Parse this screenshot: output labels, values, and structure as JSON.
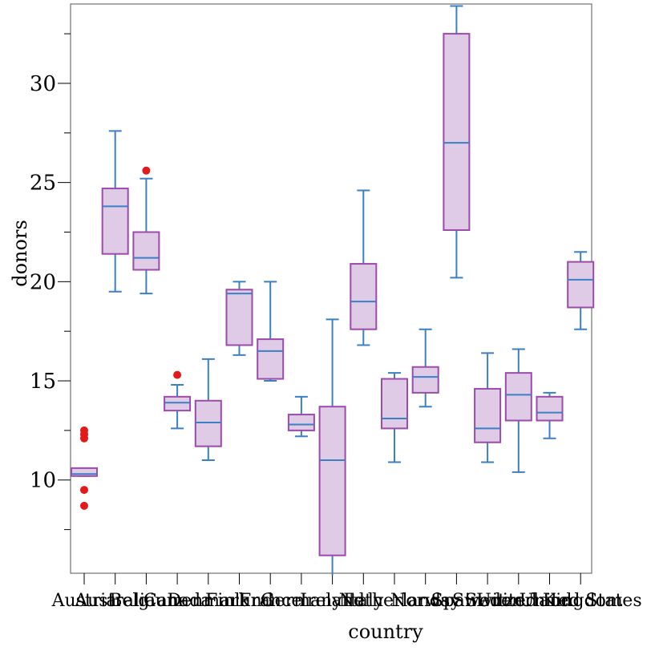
{
  "chart_data": {
    "type": "box",
    "xlabel": "country",
    "ylabel": "donors",
    "ylim": [
      5.3,
      34.0
    ],
    "yticks": [
      10,
      15,
      20,
      25,
      30
    ],
    "ytick_labels": [
      "10",
      "15",
      "20",
      "25",
      "30"
    ],
    "minor_step": 2.5,
    "colors": {
      "box_fill": "#dfcbe6",
      "box_stroke": "#9b4ba8",
      "median": "#3b7fc4",
      "whisker": "#3b7fc4",
      "outlier": "#e31a1c"
    },
    "categories": [
      {
        "label": "Austria",
        "q1": 10.2,
        "median": 10.3,
        "q3": 10.6,
        "lo": 10.2,
        "hi": 10.6,
        "outliers": [
          8.7,
          9.5,
          12.1,
          12.3,
          12.5
        ]
      },
      {
        "label": "Australia",
        "q1": 21.4,
        "median": 23.8,
        "q3": 24.7,
        "lo": 19.5,
        "hi": 27.6,
        "outliers": []
      },
      {
        "label": "Belgium",
        "q1": 20.6,
        "median": 21.2,
        "q3": 22.5,
        "lo": 19.4,
        "hi": 25.2,
        "outliers": [
          25.6
        ]
      },
      {
        "label": "Canada",
        "q1": 13.5,
        "median": 13.9,
        "q3": 14.2,
        "lo": 12.6,
        "hi": 14.8,
        "outliers": [
          15.3
        ]
      },
      {
        "label": "Denmark",
        "q1": 11.7,
        "median": 12.9,
        "q3": 14.0,
        "lo": 11.0,
        "hi": 16.1,
        "outliers": []
      },
      {
        "label": "Finland",
        "q1": 16.8,
        "median": 19.4,
        "q3": 19.6,
        "lo": 16.3,
        "hi": 20.0,
        "outliers": []
      },
      {
        "label": "France",
        "q1": 15.1,
        "median": 16.5,
        "q3": 17.1,
        "lo": 15.0,
        "hi": 20.0,
        "outliers": []
      },
      {
        "label": "Germany",
        "q1": 12.5,
        "median": 12.8,
        "q3": 13.3,
        "lo": 12.2,
        "hi": 14.2,
        "outliers": []
      },
      {
        "label": "Ireland",
        "q1": 6.2,
        "median": 11.0,
        "q3": 13.7,
        "lo": 5.2,
        "hi": 18.1,
        "outliers": []
      },
      {
        "label": "Italy",
        "q1": 17.6,
        "median": 19.0,
        "q3": 20.9,
        "lo": 16.8,
        "hi": 24.6,
        "outliers": []
      },
      {
        "label": "Netherlands",
        "q1": 12.6,
        "median": 13.1,
        "q3": 15.1,
        "lo": 10.9,
        "hi": 15.4,
        "outliers": []
      },
      {
        "label": "Norway",
        "q1": 14.4,
        "median": 15.2,
        "q3": 15.7,
        "lo": 13.7,
        "hi": 17.6,
        "outliers": []
      },
      {
        "label": "Spain",
        "q1": 22.6,
        "median": 27.0,
        "q3": 32.5,
        "lo": 20.2,
        "hi": 33.9,
        "outliers": []
      },
      {
        "label": "Sweden",
        "q1": 11.9,
        "median": 12.6,
        "q3": 14.6,
        "lo": 10.9,
        "hi": 16.4,
        "outliers": []
      },
      {
        "label": "Switzerland",
        "q1": 13.0,
        "median": 14.3,
        "q3": 15.4,
        "lo": 10.4,
        "hi": 16.6,
        "outliers": []
      },
      {
        "label": "United Kingdom",
        "q1": 13.0,
        "median": 13.4,
        "q3": 14.2,
        "lo": 12.1,
        "hi": 14.4,
        "outliers": []
      },
      {
        "label": "United States",
        "q1": 18.7,
        "median": 20.1,
        "q3": 21.0,
        "lo": 17.6,
        "hi": 21.5,
        "outliers": []
      }
    ]
  }
}
